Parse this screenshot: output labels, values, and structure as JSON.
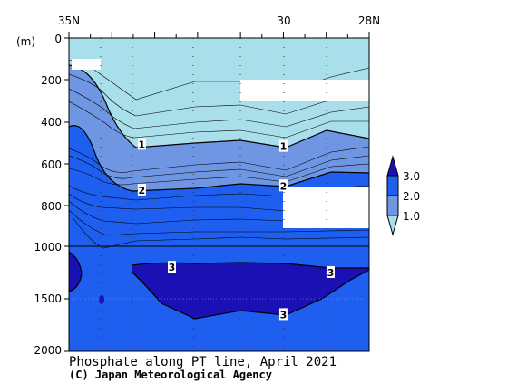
{
  "chart_data": {
    "type": "contour-section",
    "title": "Phosphate along PT line, April 2021",
    "credit": "(C) Japan Meteorological Agency",
    "ylabel": "(m)",
    "x_ticks": [
      "35N",
      "30",
      "28N"
    ],
    "y_ticks_upper": [
      "0",
      "200",
      "400",
      "600",
      "800",
      "1000"
    ],
    "y_ticks_lower": [
      "1500",
      "2000"
    ],
    "contour_labels": [
      {
        "value": "1",
        "lat": 33.3,
        "depth": 510
      },
      {
        "value": "1",
        "lat": 30.0,
        "depth": 520
      },
      {
        "value": "2",
        "lat": 33.3,
        "depth": 730
      },
      {
        "value": "2",
        "lat": 30.0,
        "depth": 710
      },
      {
        "value": "3",
        "lat": 32.6,
        "depth": 1200
      },
      {
        "value": "3",
        "lat": 28.9,
        "depth": 1250
      },
      {
        "value": "3",
        "lat": 30.0,
        "depth": 1650
      }
    ],
    "legend": {
      "labels": [
        "3.0",
        "2.0",
        "1.0"
      ],
      "colors": [
        "#1a10b4",
        "#1e5ff0",
        "#6e96e2",
        "#a9dfeb"
      ]
    },
    "colors": {
      "band_0_1": "#a9dfeb",
      "band_1_2": "#6e96e2",
      "band_2_3": "#1e5ff0",
      "band_3_plus": "#1a10b4"
    }
  }
}
